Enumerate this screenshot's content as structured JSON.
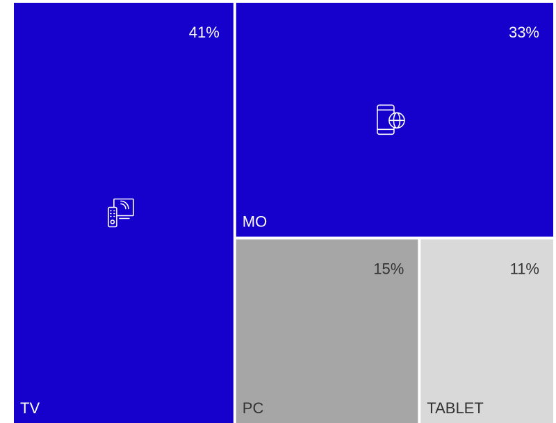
{
  "chart_data": {
    "type": "treemap",
    "categories": [
      "TV",
      "MO",
      "PC",
      "TABLET"
    ],
    "values": [
      41,
      33,
      15,
      11
    ],
    "value_labels": [
      "41%",
      "33%",
      "15%",
      "11%"
    ],
    "colors": [
      "#1500cc",
      "#1500cc",
      "#a6a6a6",
      "#d9d9d9"
    ]
  }
}
